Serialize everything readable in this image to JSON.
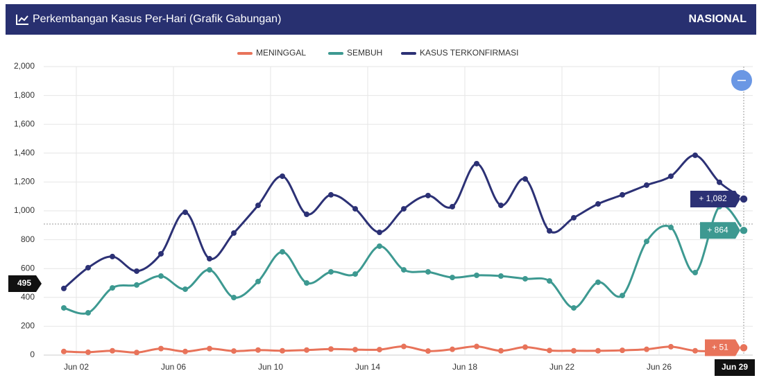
{
  "chart_data": {
    "type": "line",
    "title": "Perkembangan Kasus Per-Hari (Grafik Gabungan)",
    "region": "NASIONAL",
    "categories": [
      null,
      "Jun 02",
      null,
      null,
      null,
      "Jun 06",
      null,
      null,
      null,
      "Jun 10",
      null,
      null,
      null,
      "Jun 14",
      null,
      null,
      null,
      "Jun 18",
      null,
      null,
      null,
      "Jun 22",
      null,
      null,
      null,
      "Jun 26",
      null,
      null,
      "Jun 29"
    ],
    "series": [
      {
        "name": "MENINGGAL",
        "color": "#e8735a",
        "values": [
          25,
          20,
          30,
          18,
          45,
          25,
          45,
          28,
          35,
          30,
          35,
          42,
          38,
          38,
          60,
          28,
          40,
          60,
          30,
          55,
          32,
          30,
          30,
          33,
          40,
          58,
          30,
          30,
          51
        ],
        "value_labels": [
          null,
          null,
          null,
          null,
          null,
          null,
          null,
          null,
          null,
          null,
          null,
          null,
          null,
          null,
          null,
          null,
          null,
          null,
          null,
          null,
          null,
          null,
          null,
          null,
          null,
          null,
          null,
          null,
          "+ 51"
        ]
      },
      {
        "name": "SEMBUH",
        "color": "#3d9991",
        "values": [
          327,
          293,
          466,
          486,
          548,
          457,
          591,
          399,
          510,
          716,
          500,
          577,
          562,
          755,
          591,
          577,
          538,
          553,
          548,
          529,
          514,
          327,
          505,
          413,
          788,
          885,
          572,
          1029,
          864
        ],
        "value_labels": [
          null,
          null,
          null,
          null,
          null,
          null,
          null,
          null,
          null,
          null,
          null,
          null,
          null,
          null,
          null,
          null,
          null,
          null,
          null,
          null,
          null,
          null,
          null,
          null,
          null,
          null,
          null,
          null,
          "+ 864"
        ]
      },
      {
        "name": "KASUS TERKONFIRMASI",
        "color": "#2c3175",
        "values": [
          462,
          606,
          683,
          582,
          702,
          990,
          668,
          846,
          1038,
          1240,
          976,
          1111,
          1014,
          851,
          1014,
          1106,
          1029,
          1327,
          1038,
          1221,
          861,
          952,
          1048,
          1111,
          1178,
          1240,
          1385,
          1198,
          1082
        ],
        "value_labels": [
          null,
          null,
          null,
          null,
          null,
          null,
          null,
          null,
          null,
          null,
          null,
          null,
          null,
          null,
          null,
          null,
          null,
          null,
          null,
          null,
          null,
          null,
          null,
          null,
          null,
          null,
          null,
          null,
          "+ 1,082"
        ]
      }
    ],
    "crosshair_y": 495,
    "ylim": [
      0,
      2000
    ],
    "yticks": [
      0,
      200,
      400,
      600,
      800,
      {
        "value": 1000,
        "label": "1,000"
      },
      {
        "value": 1200,
        "label": "1,200"
      },
      {
        "value": 1400,
        "label": "1,400"
      },
      {
        "value": 1600,
        "label": "1,600"
      },
      {
        "value": 1800,
        "label": "1,800"
      },
      {
        "value": 2000,
        "label": "2,000"
      }
    ],
    "grid": true
  }
}
